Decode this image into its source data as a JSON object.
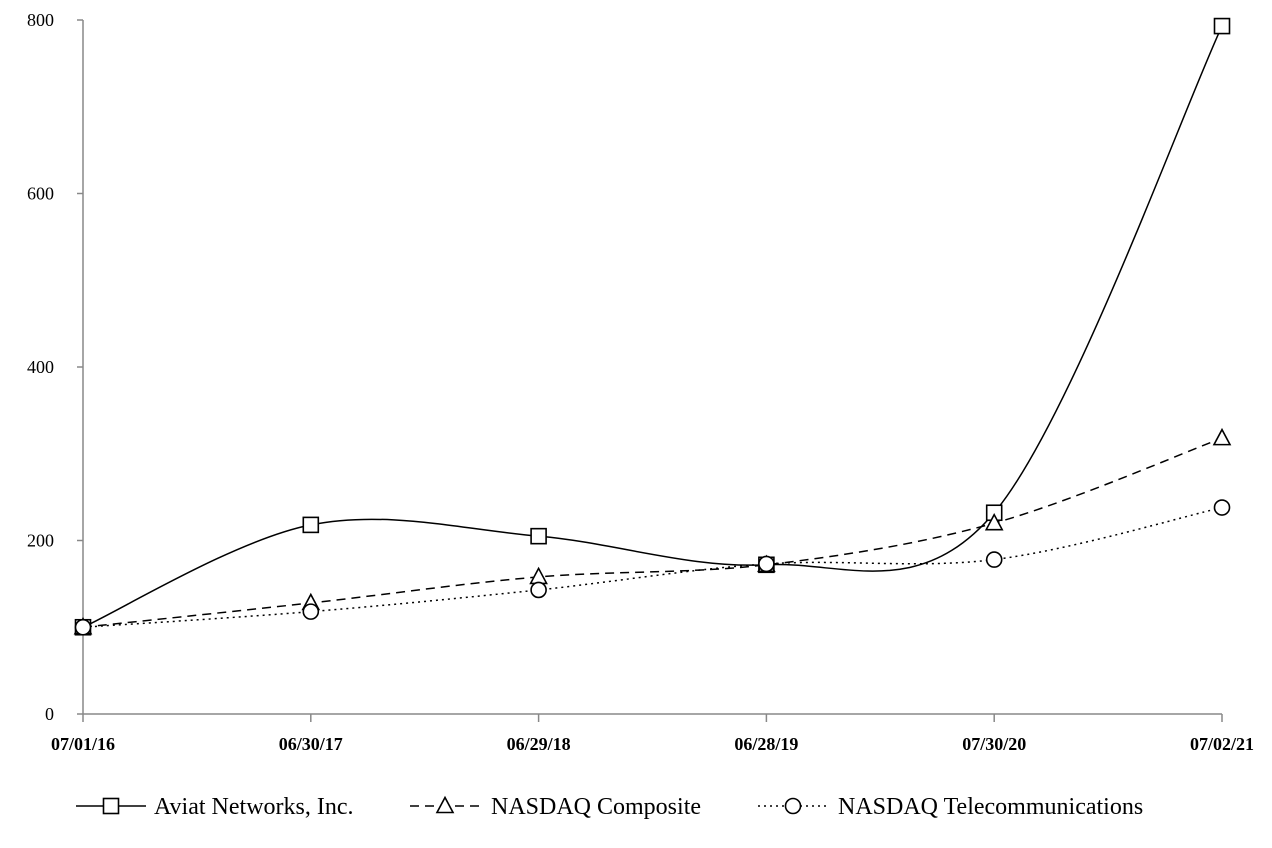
{
  "chart_data": {
    "type": "line",
    "title": "",
    "xlabel": "",
    "ylabel": "",
    "categories": [
      "07/01/16",
      "06/30/17",
      "06/29/18",
      "06/28/19",
      "07/30/20",
      "07/02/21"
    ],
    "ylim": [
      0,
      800
    ],
    "yticks": [
      "0",
      "200",
      "400",
      "600",
      "800"
    ],
    "grid": false,
    "legend_position": "bottom",
    "series": [
      {
        "name": "Aviat Networks, Inc.",
        "values": [
          100,
          218,
          205,
          172,
          232,
          793
        ],
        "marker": "square",
        "dash": "solid"
      },
      {
        "name": "NASDAQ Composite",
        "values": [
          100,
          128,
          158,
          172,
          220,
          318
        ],
        "marker": "triangle",
        "dash": "dashed"
      },
      {
        "name": "NASDAQ Telecommunications",
        "values": [
          100,
          118,
          143,
          173,
          178,
          238
        ],
        "marker": "circle",
        "dash": "dotted"
      }
    ]
  }
}
